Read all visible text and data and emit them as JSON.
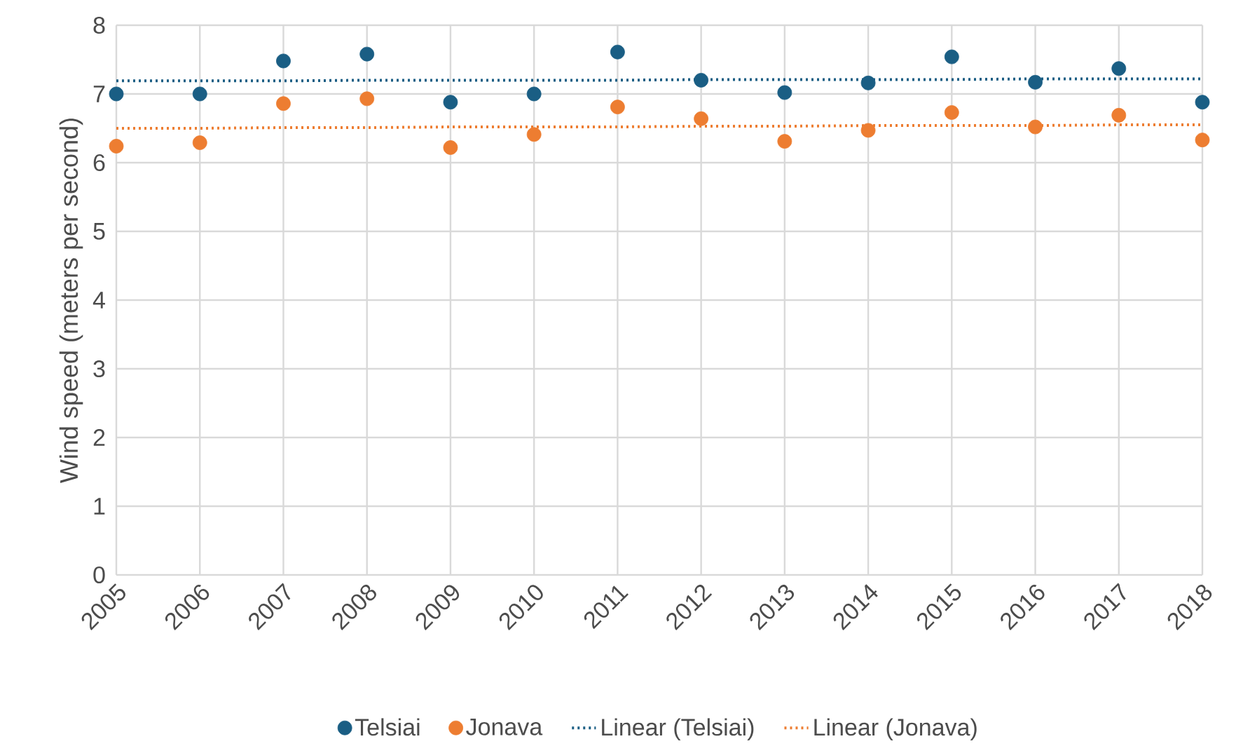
{
  "chart_data": {
    "type": "scatter",
    "ylabel": "Wind speed (meters per second)",
    "x": [
      2005,
      2006,
      2007,
      2008,
      2009,
      2010,
      2011,
      2012,
      2013,
      2014,
      2015,
      2016,
      2017,
      2018
    ],
    "series": [
      {
        "name": "Telsiai",
        "color": "#1a5e84",
        "marker": "circle",
        "values": [
          7.0,
          7.0,
          7.48,
          7.58,
          6.88,
          7.0,
          7.61,
          7.2,
          7.02,
          7.16,
          7.54,
          7.17,
          7.37,
          6.88
        ]
      },
      {
        "name": "Jonava",
        "color": "#ed7d31",
        "marker": "circle",
        "values": [
          6.24,
          6.29,
          6.86,
          6.93,
          6.22,
          6.41,
          6.81,
          6.64,
          6.31,
          6.47,
          6.73,
          6.52,
          6.69,
          6.33
        ]
      },
      {
        "name": "Linear (Telsiai)",
        "type": "line",
        "color": "#1a5e84",
        "line_style": "dotted",
        "marker": "none",
        "values": [
          7.19,
          7.19,
          7.19,
          7.2,
          7.2,
          7.2,
          7.2,
          7.21,
          7.21,
          7.21,
          7.21,
          7.22,
          7.22,
          7.22
        ]
      },
      {
        "name": "Linear (Jonava)",
        "type": "line",
        "color": "#ed7d31",
        "line_style": "dotted",
        "marker": "none",
        "values": [
          6.5,
          6.5,
          6.51,
          6.51,
          6.52,
          6.52,
          6.52,
          6.53,
          6.53,
          6.54,
          6.54,
          6.54,
          6.55,
          6.55
        ]
      }
    ],
    "xlim": [
      2005,
      2018
    ],
    "xticks": [
      2005,
      2006,
      2007,
      2008,
      2009,
      2010,
      2011,
      2012,
      2013,
      2014,
      2015,
      2016,
      2017,
      2018
    ],
    "ylim": [
      0,
      8
    ],
    "yticks": [
      0,
      1,
      2,
      3,
      4,
      5,
      6,
      7,
      8
    ],
    "grid": true,
    "legend": "bottom"
  }
}
